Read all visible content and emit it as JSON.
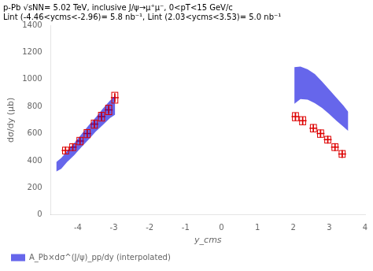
{
  "chart_data": {
    "type": "scatter",
    "annotations": [
      "p-Pb √sNN= 5.02 TeV, inclusive J/ψ→μ⁺μ⁻, 0<pT<15 GeV/c",
      "Lint (-4.46<ycms<-2.96)= 5.8 nb⁻¹, Lint (2.03<ycms<3.53)= 5.0 nb⁻¹"
    ],
    "xlabel": "y_cms",
    "ylabel": "dσ/dy (μb)",
    "xlim": [
      -4.75,
      4.0
    ],
    "ylim": [
      0,
      1400
    ],
    "xticks": [
      -4,
      -3,
      -2,
      -1,
      0,
      1,
      2,
      3,
      4
    ],
    "yticks": [
      0,
      200,
      400,
      600,
      800,
      1000,
      1200,
      1400
    ],
    "grid": false,
    "legend": "lower left",
    "series": [
      {
        "name": "A_Pb×dσ^(J/ψ)_pp/dy (interpolated)",
        "type": "band",
        "color": "#0000dd",
        "x": [
          -4.6,
          -4.46,
          -4.3,
          -4.1,
          -3.9,
          -3.7,
          -3.5,
          -3.3,
          -3.1,
          -2.96
        ],
        "lo": [
          320,
          340,
          390,
          440,
          500,
          555,
          615,
          665,
          715,
          740
        ],
        "hi": [
          390,
          420,
          470,
          530,
          595,
          660,
          720,
          785,
          845,
          880
        ]
      },
      {
        "type": "band",
        "color": "#0000dd",
        "x": [
          2.03,
          2.2,
          2.4,
          2.6,
          2.8,
          3.0,
          3.2,
          3.4,
          3.53
        ],
        "lo": [
          820,
          855,
          850,
          825,
          790,
          745,
          695,
          650,
          620
        ],
        "hi": [
          1090,
          1095,
          1075,
          1040,
          985,
          925,
          865,
          805,
          760
        ]
      },
      {
        "type": "scatter",
        "marker": "+",
        "color": "#dd0000",
        "x": [
          -4.34,
          -4.14,
          -3.94,
          -3.74,
          -3.54,
          -3.34,
          -3.14,
          -2.97
        ],
        "values": [
          475,
          500,
          545,
          600,
          670,
          725,
          775,
          865
        ],
        "yerr": [
          25,
          25,
          25,
          28,
          28,
          28,
          30,
          35
        ],
        "syst": [
          50,
          50,
          55,
          60,
          60,
          65,
          70,
          80
        ]
      },
      {
        "type": "scatter",
        "marker": "+",
        "color": "#dd0000",
        "x": [
          2.06,
          2.26,
          2.56,
          2.76,
          2.96,
          3.16,
          3.36
        ],
        "values": [
          725,
          695,
          640,
          600,
          555,
          500,
          450
        ],
        "yerr": [
          30,
          28,
          25,
          25,
          22,
          22,
          22
        ],
        "syst": [
          60,
          60,
          55,
          55,
          50,
          50,
          50
        ]
      }
    ]
  }
}
